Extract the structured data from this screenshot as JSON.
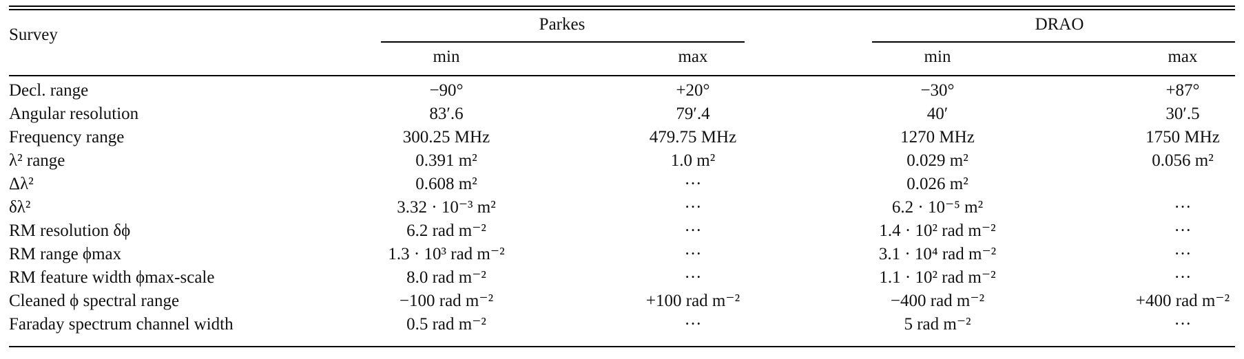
{
  "table": {
    "header": {
      "survey_label": "Survey",
      "group_parkes": "Parkes",
      "group_drao": "DRAO",
      "sub": [
        "min",
        "max",
        "min",
        "max"
      ]
    },
    "rows": [
      {
        "label": "Decl. range",
        "cells": [
          "−90°",
          "+20°",
          "−30°",
          "+87°"
        ]
      },
      {
        "label": "Angular resolution",
        "cells": [
          "83′.6",
          "79′.4",
          "40′",
          "30′.5"
        ]
      },
      {
        "label": "Frequency range",
        "cells": [
          "300.25 MHz",
          "479.75 MHz",
          "1270 MHz",
          "1750 MHz"
        ]
      },
      {
        "label": "λ² range",
        "cells": [
          "0.391 m²",
          "1.0 m²",
          "0.029 m²",
          "0.056 m²"
        ]
      },
      {
        "label": "Δλ²",
        "cells": [
          "0.608 m²",
          "···",
          "0.026 m²",
          ""
        ]
      },
      {
        "label": "δλ²",
        "cells": [
          "3.32 · 10⁻³ m²",
          "···",
          "6.2 · 10⁻⁵ m²",
          "···"
        ]
      },
      {
        "label": "RM resolution δϕ",
        "cells": [
          "6.2 rad m⁻²",
          "···",
          "1.4 · 10² rad m⁻²",
          "···"
        ]
      },
      {
        "label": "RM range ϕmax",
        "cells": [
          "1.3 · 10³ rad m⁻²",
          "···",
          "3.1 · 10⁴ rad m⁻²",
          "···"
        ]
      },
      {
        "label": "RM feature width ϕmax-scale",
        "cells": [
          "8.0 rad m⁻²",
          "···",
          "1.1 · 10² rad m⁻²",
          "···"
        ]
      },
      {
        "label": "Cleaned ϕ spectral range",
        "cells": [
          "−100 rad m⁻²",
          "+100 rad m⁻²",
          "−400 rad m⁻²",
          "+400 rad m⁻²"
        ]
      },
      {
        "label": "Faraday spectrum channel width",
        "cells": [
          "0.5 rad m⁻²",
          "···",
          "5 rad m⁻²",
          "···"
        ]
      }
    ]
  }
}
